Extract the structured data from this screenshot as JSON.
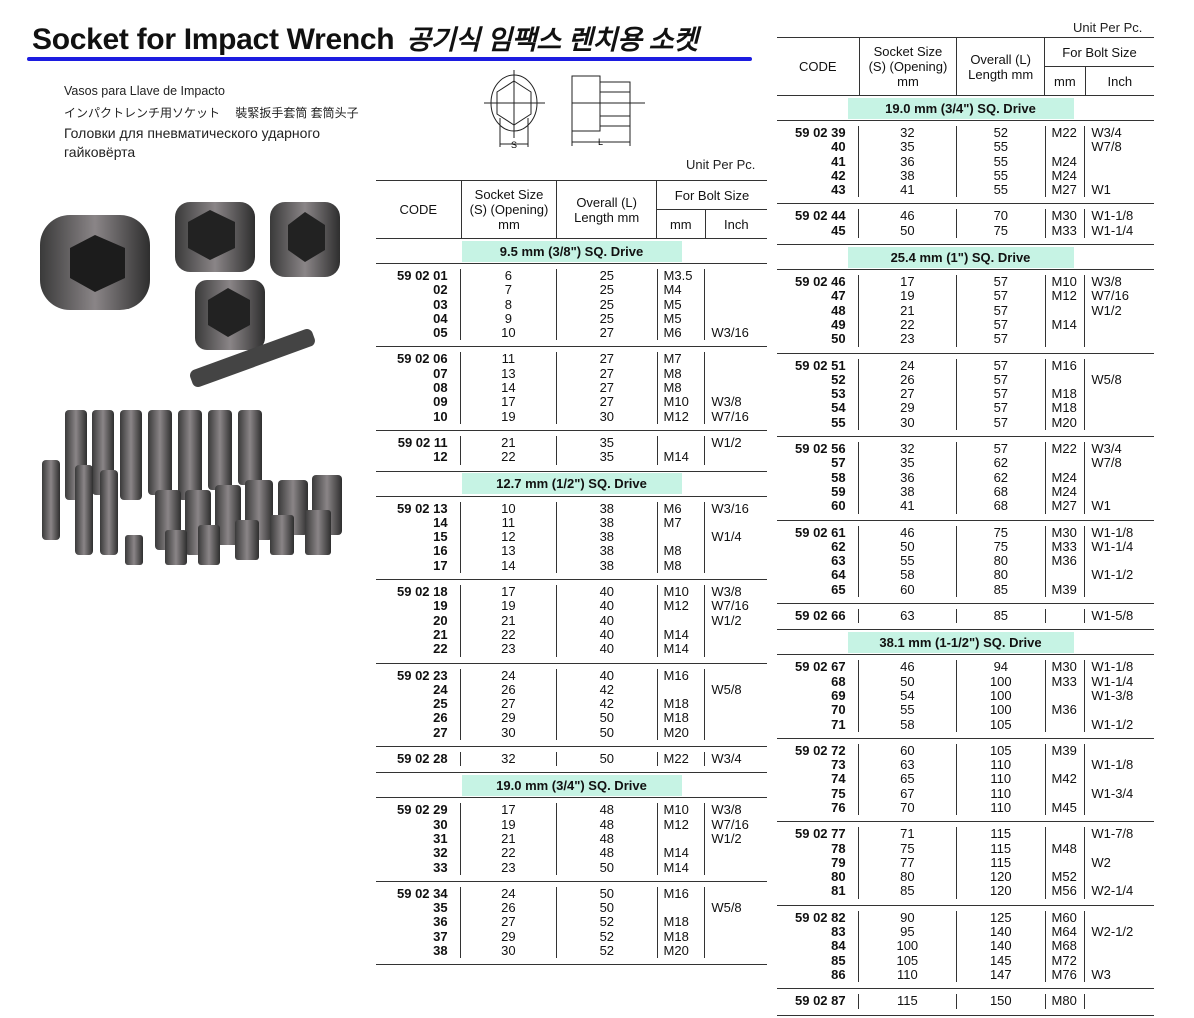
{
  "header": {
    "title": "Socket for Impact  Wrench",
    "title_korean": "공기식 임팩스 렌치용 소켓",
    "subtitle_es": "Vasos para Llave de Impacto",
    "subtitle_jp_cn": "インパクトレンチ用ソケット　 裝緊扳手套筒 套筒头子",
    "subtitle_ru_1": "Головки для пневматического ударного",
    "subtitle_ru_2": "гайковёрта",
    "diagram_labels": {
      "s": "S",
      "l": "L"
    },
    "accent_color": "#1c1ce0"
  },
  "table_headers": {
    "unit": "Unit Per Pc.",
    "code": "CODE",
    "socket_size": "Socket Size (S) (Opening) mm",
    "overall_length": "Overall (L) Length mm",
    "bolt_size": "For Bolt Size",
    "mm": "mm",
    "inch": "Inch"
  },
  "band_color": "#c6f3e4",
  "tables": [
    {
      "sections": [
        {
          "drive": "9.5 mm (3/8\") SQ. Drive"
        },
        {
          "rows": [
            [
              "59 02 01",
              "6",
              "25",
              "M3.5",
              ""
            ],
            [
              "02",
              "7",
              "25",
              "M4",
              ""
            ],
            [
              "03",
              "8",
              "25",
              "M5",
              ""
            ],
            [
              "04",
              "9",
              "25",
              "M5",
              ""
            ],
            [
              "05",
              "10",
              "27",
              "M6",
              "W3/16"
            ]
          ]
        },
        {
          "rows": [
            [
              "59 02 06",
              "11",
              "27",
              "M7",
              ""
            ],
            [
              "07",
              "13",
              "27",
              "M8",
              ""
            ],
            [
              "08",
              "14",
              "27",
              "M8",
              ""
            ],
            [
              "09",
              "17",
              "27",
              "M10",
              "W3/8"
            ],
            [
              "10",
              "19",
              "30",
              "M12",
              "W7/16"
            ]
          ]
        },
        {
          "rows": [
            [
              "59 02 11",
              "21",
              "35",
              "",
              "W1/2"
            ],
            [
              "12",
              "22",
              "35",
              "M14",
              ""
            ]
          ]
        },
        {
          "drive": "12.7 mm (1/2\") SQ. Drive"
        },
        {
          "rows": [
            [
              "59 02 13",
              "10",
              "38",
              "M6",
              "W3/16"
            ],
            [
              "14",
              "11",
              "38",
              "M7",
              ""
            ],
            [
              "15",
              "12",
              "38",
              "",
              "W1/4"
            ],
            [
              "16",
              "13",
              "38",
              "M8",
              ""
            ],
            [
              "17",
              "14",
              "38",
              "M8",
              ""
            ]
          ]
        },
        {
          "rows": [
            [
              "59 02 18",
              "17",
              "40",
              "M10",
              "W3/8"
            ],
            [
              "19",
              "19",
              "40",
              "M12",
              "W7/16"
            ],
            [
              "20",
              "21",
              "40",
              "",
              "W1/2"
            ],
            [
              "21",
              "22",
              "40",
              "M14",
              ""
            ],
            [
              "22",
              "23",
              "40",
              "M14",
              ""
            ]
          ]
        },
        {
          "rows": [
            [
              "59 02 23",
              "24",
              "40",
              "M16",
              ""
            ],
            [
              "24",
              "26",
              "42",
              "",
              "W5/8"
            ],
            [
              "25",
              "27",
              "42",
              "M18",
              ""
            ],
            [
              "26",
              "29",
              "50",
              "M18",
              ""
            ],
            [
              "27",
              "30",
              "50",
              "M20",
              ""
            ]
          ]
        },
        {
          "rows": [
            [
              "59 02 28",
              "32",
              "50",
              "M22",
              "W3/4"
            ]
          ]
        },
        {
          "drive": "19.0 mm (3/4\") SQ. Drive"
        },
        {
          "rows": [
            [
              "59 02 29",
              "17",
              "48",
              "M10",
              "W3/8"
            ],
            [
              "30",
              "19",
              "48",
              "M12",
              "W7/16"
            ],
            [
              "31",
              "21",
              "48",
              "",
              "W1/2"
            ],
            [
              "32",
              "22",
              "48",
              "M14",
              ""
            ],
            [
              "33",
              "23",
              "50",
              "M14",
              ""
            ]
          ]
        },
        {
          "rows": [
            [
              "59 02 34",
              "24",
              "50",
              "M16",
              ""
            ],
            [
              "35",
              "26",
              "50",
              "",
              "W5/8"
            ],
            [
              "36",
              "27",
              "52",
              "M18",
              ""
            ],
            [
              "37",
              "29",
              "52",
              "M18",
              ""
            ],
            [
              "38",
              "30",
              "52",
              "M20",
              ""
            ]
          ]
        }
      ]
    },
    {
      "sections": [
        {
          "drive": "19.0 mm (3/4\") SQ. Drive"
        },
        {
          "rows": [
            [
              "59 02 39",
              "32",
              "52",
              "M22",
              "W3/4"
            ],
            [
              "40",
              "35",
              "55",
              "",
              "W7/8"
            ],
            [
              "41",
              "36",
              "55",
              "M24",
              ""
            ],
            [
              "42",
              "38",
              "55",
              "M24",
              ""
            ],
            [
              "43",
              "41",
              "55",
              "M27",
              "W1"
            ]
          ]
        },
        {
          "rows": [
            [
              "59 02 44",
              "46",
              "70",
              "M30",
              "W1-1/8"
            ],
            [
              "45",
              "50",
              "75",
              "M33",
              "W1-1/4"
            ]
          ]
        },
        {
          "drive": "25.4 mm (1\") SQ. Drive"
        },
        {
          "rows": [
            [
              "59 02 46",
              "17",
              "57",
              "M10",
              "W3/8"
            ],
            [
              "47",
              "19",
              "57",
              "M12",
              "W7/16"
            ],
            [
              "48",
              "21",
              "57",
              "",
              "W1/2"
            ],
            [
              "49",
              "22",
              "57",
              "M14",
              ""
            ],
            [
              "50",
              "23",
              "57",
              "",
              ""
            ]
          ]
        },
        {
          "rows": [
            [
              "59 02 51",
              "24",
              "57",
              "M16",
              ""
            ],
            [
              "52",
              "26",
              "57",
              "",
              "W5/8"
            ],
            [
              "53",
              "27",
              "57",
              "M18",
              ""
            ],
            [
              "54",
              "29",
              "57",
              "M18",
              ""
            ],
            [
              "55",
              "30",
              "57",
              "M20",
              ""
            ]
          ]
        },
        {
          "rows": [
            [
              "59 02 56",
              "32",
              "57",
              "M22",
              "W3/4"
            ],
            [
              "57",
              "35",
              "62",
              "",
              "W7/8"
            ],
            [
              "58",
              "36",
              "62",
              "M24",
              ""
            ],
            [
              "59",
              "38",
              "68",
              "M24",
              ""
            ],
            [
              "60",
              "41",
              "68",
              "M27",
              "W1"
            ]
          ]
        },
        {
          "rows": [
            [
              "59 02 61",
              "46",
              "75",
              "M30",
              "W1-1/8"
            ],
            [
              "62",
              "50",
              "75",
              "M33",
              "W1-1/4"
            ],
            [
              "63",
              "55",
              "80",
              "M36",
              ""
            ],
            [
              "64",
              "58",
              "80",
              "",
              "W1-1/2"
            ],
            [
              "65",
              "60",
              "85",
              "M39",
              ""
            ]
          ]
        },
        {
          "rows": [
            [
              "59 02 66",
              "63",
              "85",
              "",
              "W1-5/8"
            ]
          ]
        },
        {
          "drive": "38.1 mm (1-1/2\") SQ. Drive"
        },
        {
          "rows": [
            [
              "59 02 67",
              "46",
              "94",
              "M30",
              "W1-1/8"
            ],
            [
              "68",
              "50",
              "100",
              "M33",
              "W1-1/4"
            ],
            [
              "69",
              "54",
              "100",
              "",
              "W1-3/8"
            ],
            [
              "70",
              "55",
              "100",
              "M36",
              ""
            ],
            [
              "71",
              "58",
              "105",
              "",
              "W1-1/2"
            ]
          ]
        },
        {
          "rows": [
            [
              "59 02 72",
              "60",
              "105",
              "M39",
              ""
            ],
            [
              "73",
              "63",
              "110",
              "",
              "W1-1/8"
            ],
            [
              "74",
              "65",
              "110",
              "M42",
              ""
            ],
            [
              "75",
              "67",
              "110",
              "",
              "W1-3/4"
            ],
            [
              "76",
              "70",
              "110",
              "M45",
              ""
            ]
          ]
        },
        {
          "rows": [
            [
              "59 02 77",
              "71",
              "115",
              "",
              "W1-7/8"
            ],
            [
              "78",
              "75",
              "115",
              "M48",
              ""
            ],
            [
              "79",
              "77",
              "115",
              "",
              "W2"
            ],
            [
              "80",
              "80",
              "120",
              "M52",
              ""
            ],
            [
              "81",
              "85",
              "120",
              "M56",
              "W2-1/4"
            ]
          ]
        },
        {
          "rows": [
            [
              "59 02 82",
              "90",
              "125",
              "M60",
              ""
            ],
            [
              "83",
              "95",
              "140",
              "M64",
              "W2-1/2"
            ],
            [
              "84",
              "100",
              "140",
              "M68",
              ""
            ],
            [
              "85",
              "105",
              "145",
              "M72",
              ""
            ],
            [
              "86",
              "110",
              "147",
              "M76",
              "W3"
            ]
          ]
        },
        {
          "rows": [
            [
              "59 02 87",
              "115",
              "150",
              "M80",
              ""
            ]
          ]
        }
      ]
    }
  ]
}
